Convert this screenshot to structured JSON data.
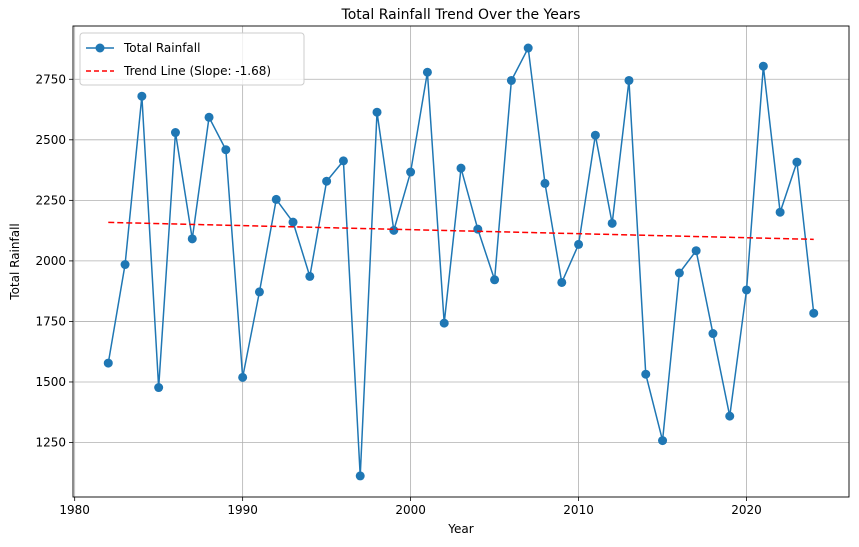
{
  "chart_data": {
    "type": "line",
    "title": "Total Rainfall Trend Over the Years",
    "xlabel": "Year",
    "ylabel": "Total Rainfall",
    "xlim": [
      1979.9,
      2026.1
    ],
    "ylim": [
      1025,
      2970
    ],
    "x_ticks": [
      1980,
      1990,
      2000,
      2010,
      2020
    ],
    "y_ticks": [
      1250,
      1500,
      1750,
      2000,
      2250,
      2500,
      2750
    ],
    "grid": true,
    "legend_position": "top-left",
    "series": [
      {
        "name": "Total Rainfall",
        "style": "line-marker",
        "color": "#1f77b4",
        "x": [
          1982,
          1983,
          1984,
          1985,
          1986,
          1987,
          1988,
          1989,
          1990,
          1991,
          1992,
          1993,
          1994,
          1995,
          1996,
          1997,
          1998,
          1999,
          2000,
          2001,
          2002,
          2003,
          2004,
          2005,
          2006,
          2007,
          2008,
          2009,
          2010,
          2011,
          2012,
          2013,
          2014,
          2015,
          2016,
          2017,
          2018,
          2019,
          2020,
          2021,
          2022,
          2023,
          2024
        ],
        "values": [
          1578,
          1985,
          2680,
          1477,
          2530,
          2091,
          2593,
          2459,
          1519,
          1872,
          2254,
          2160,
          1936,
          2329,
          2413,
          1112,
          2614,
          2126,
          2367,
          2779,
          1743,
          2383,
          2131,
          1922,
          2745,
          2879,
          2320,
          1911,
          2068,
          2519,
          2155,
          2745,
          1532,
          1258,
          1950,
          2042,
          1700,
          1359,
          1880,
          2804,
          2201,
          2408,
          1784
        ]
      },
      {
        "name": "Trend Line (Slope: -1.68)",
        "style": "dashed",
        "color": "#ff0000",
        "x": [
          1982,
          2024
        ],
        "values": [
          2159,
          2089
        ]
      }
    ]
  }
}
